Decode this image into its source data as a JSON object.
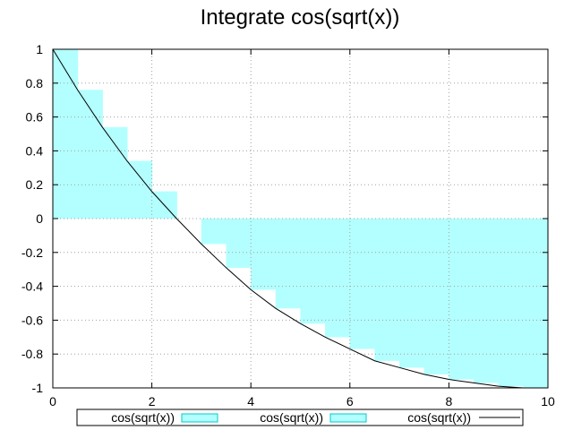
{
  "chart_data": {
    "type": "area",
    "title": "Integrate cos(sqrt(x))",
    "xlabel": "",
    "ylabel": "",
    "xlim": [
      0,
      10
    ],
    "ylim": [
      -1,
      1
    ],
    "x_ticks": [
      "0",
      "2",
      "4",
      "6",
      "8",
      "10"
    ],
    "y_ticks": [
      "1",
      "0.8",
      "0.6",
      "0.4",
      "0.2",
      "0",
      "-0.2",
      "-0.4",
      "-0.6",
      "-0.8",
      "-1"
    ],
    "grid": true,
    "legend_position": "bottom",
    "fill_color": "#b3ffff",
    "line_color": "#000000",
    "series": [
      {
        "name": "cos(sqrt(x))",
        "style": "filled-box",
        "x": [
          0,
          0.5,
          1,
          1.5,
          2,
          2.5,
          3,
          3.5,
          4,
          4.5,
          5,
          5.5,
          6,
          6.5,
          7,
          7.5,
          8,
          8.5,
          9,
          9.5,
          10
        ],
        "y": [
          1.0,
          0.76,
          0.54,
          0.34,
          0.16,
          0.0,
          -0.15,
          -0.29,
          -0.42,
          -0.53,
          -0.62,
          -0.7,
          -0.77,
          -0.84,
          -0.88,
          -0.92,
          -0.95,
          -0.97,
          -0.99,
          -1.0,
          -1.0
        ]
      },
      {
        "name": "cos(sqrt(x))",
        "style": "filled-box",
        "x": [
          0,
          0.5,
          1,
          1.5,
          2,
          2.5,
          3,
          3.5,
          4,
          4.5,
          5,
          5.5,
          6,
          6.5,
          7,
          7.5,
          8,
          8.5,
          9,
          9.5,
          10
        ],
        "y": [
          1.0,
          0.76,
          0.54,
          0.34,
          0.16,
          0.0,
          -0.15,
          -0.29,
          -0.42,
          -0.53,
          -0.62,
          -0.7,
          -0.77,
          -0.84,
          -0.88,
          -0.92,
          -0.95,
          -0.97,
          -0.99,
          -1.0,
          -1.0
        ]
      },
      {
        "name": "cos(sqrt(x))",
        "style": "line",
        "x": [
          0,
          0.5,
          1,
          1.5,
          2,
          2.5,
          3,
          3.5,
          4,
          4.5,
          5,
          5.5,
          6,
          6.5,
          7,
          7.5,
          8,
          8.5,
          9,
          9.5,
          10
        ],
        "y": [
          1.0,
          0.76,
          0.54,
          0.34,
          0.16,
          0.0,
          -0.15,
          -0.29,
          -0.42,
          -0.53,
          -0.62,
          -0.7,
          -0.77,
          -0.84,
          -0.88,
          -0.92,
          -0.95,
          -0.97,
          -0.99,
          -1.0,
          -1.0
        ]
      }
    ]
  }
}
